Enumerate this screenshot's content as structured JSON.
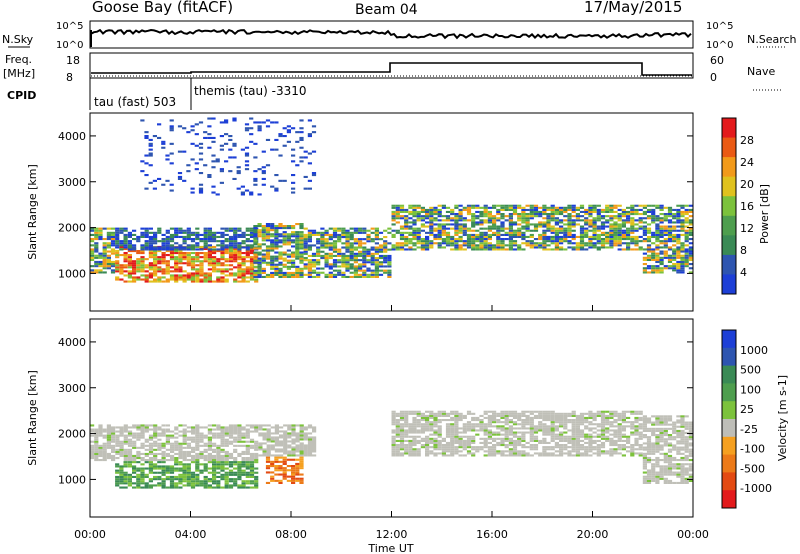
{
  "header": {
    "station": "Goose Bay (fitACF)",
    "beam": "Beam 04",
    "date": "17/May/2015"
  },
  "status_panel": {
    "left_labels": [
      "N.Sky",
      "Freq.",
      "[MHz]",
      "CPID"
    ],
    "right_labels": [
      "N.Search",
      "Nave"
    ],
    "nsky_axis": [
      "10^5",
      "10^0"
    ],
    "nsearch_axis": [
      "10^5",
      "10^0"
    ],
    "freq_axis": [
      "18",
      "8"
    ],
    "nave_axis": [
      "60",
      "0"
    ],
    "cpid_segments": [
      {
        "label": "tau (fast) 503",
        "start_hour": 0.0,
        "end_hour": 4.0
      },
      {
        "label": "themis (tau) -3310",
        "start_hour": 4.0,
        "end_hour": 24.0
      }
    ]
  },
  "colors": {
    "power": [
      "#1d3fd6",
      "#2e55b0",
      "#3a8a55",
      "#4e9e4e",
      "#7cc23c",
      "#e0c21e",
      "#f29a1a",
      "#ea5a14",
      "#e31a1c"
    ],
    "velocity": [
      "#1d3fd6",
      "#2e55b0",
      "#3a8a55",
      "#4e9e4e",
      "#7cc23c",
      "#bebeb8",
      "#f5a020",
      "#ec7a18",
      "#e34a12",
      "#e31a1c"
    ],
    "ground": "#c0c0b8"
  },
  "chart_data": [
    {
      "type": "heatmap",
      "title": "",
      "xlabel": "Time UT",
      "ylabel": "Slant Range [km]",
      "x_ticks": [
        "00:00",
        "04:00",
        "08:00",
        "12:00",
        "16:00",
        "20:00",
        "00:00"
      ],
      "xlim_hours": [
        0,
        24
      ],
      "y_ticks": [
        "1000",
        "2000",
        "3000",
        "4000"
      ],
      "ylim_km": [
        180,
        4500
      ],
      "colorbar_label": "Power [dB]",
      "colorbar_ticks": [
        "4",
        "8",
        "12",
        "16",
        "20",
        "24",
        "28"
      ],
      "echo_regions": [
        {
          "t0": 0.0,
          "t1": 1.0,
          "r0": 1000,
          "r1": 2000,
          "level": "medium"
        },
        {
          "t0": 1.0,
          "t1": 6.7,
          "r0": 800,
          "r1": 1600,
          "level": "strong"
        },
        {
          "t0": 1.0,
          "t1": 6.7,
          "r0": 1500,
          "r1": 2000,
          "level": "weak"
        },
        {
          "t0": 2.0,
          "t1": 9.0,
          "r0": 2700,
          "r1": 4400,
          "level": "scatter"
        },
        {
          "t0": 6.5,
          "t1": 8.5,
          "r0": 900,
          "r1": 2100,
          "level": "medium"
        },
        {
          "t0": 8.5,
          "t1": 12.0,
          "r0": 900,
          "r1": 2000,
          "level": "medium"
        },
        {
          "t0": 12.0,
          "t1": 22.0,
          "r0": 1500,
          "r1": 2500,
          "level": "medium"
        },
        {
          "t0": 22.0,
          "t1": 24.0,
          "r0": 1000,
          "r1": 2500,
          "level": "medium"
        }
      ]
    },
    {
      "type": "heatmap",
      "title": "",
      "xlabel": "Time UT",
      "ylabel": "Slant Range [km]",
      "x_ticks": [
        "00:00",
        "04:00",
        "08:00",
        "12:00",
        "16:00",
        "20:00",
        "00:00"
      ],
      "xlim_hours": [
        0,
        24
      ],
      "y_ticks": [
        "1000",
        "2000",
        "3000",
        "4000"
      ],
      "ylim_km": [
        180,
        4500
      ],
      "colorbar_label": "Velocity [m s-1]",
      "colorbar_ticks": [
        "1000",
        "500",
        "100",
        "25",
        "-25",
        "-100",
        "-500",
        "-1000"
      ],
      "echo_regions": [
        {
          "t0": 0.0,
          "t1": 6.7,
          "r0": 1400,
          "r1": 2200,
          "level": "ground"
        },
        {
          "t0": 1.0,
          "t1": 6.7,
          "r0": 800,
          "r1": 1400,
          "level": "positive"
        },
        {
          "t0": 6.7,
          "t1": 9.0,
          "r0": 1500,
          "r1": 2200,
          "level": "ground"
        },
        {
          "t0": 7.0,
          "t1": 8.5,
          "r0": 900,
          "r1": 1500,
          "level": "negative"
        },
        {
          "t0": 12.0,
          "t1": 22.0,
          "r0": 1500,
          "r1": 2500,
          "level": "ground"
        },
        {
          "t0": 22.0,
          "t1": 24.0,
          "r0": 900,
          "r1": 2400,
          "level": "ground"
        }
      ]
    }
  ]
}
